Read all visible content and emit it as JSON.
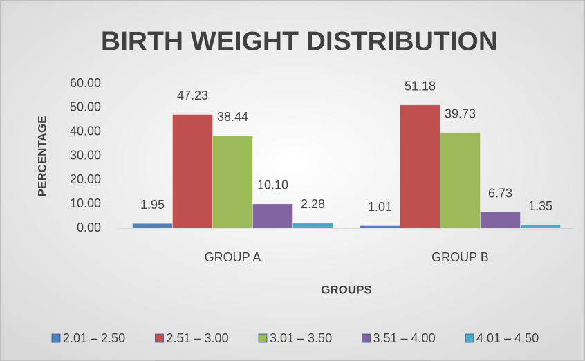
{
  "chart_data": {
    "type": "bar",
    "title": "BIRTH WEIGHT DISTRIBUTION",
    "x_label": "GROUPS",
    "y_label": "PERCENTAGE",
    "categories": [
      "GROUP A",
      "GROUP B"
    ],
    "series": [
      {
        "name": "2.01 – 2.50",
        "color": "#4f81bd",
        "values": [
          1.95,
          1.01
        ],
        "value_labels": [
          "1.95",
          "1.01"
        ]
      },
      {
        "name": "2.51 – 3.00",
        "color": "#c0504d",
        "values": [
          47.23,
          51.18
        ],
        "value_labels": [
          "47.23",
          "51.18"
        ]
      },
      {
        "name": "3.01 – 3.50",
        "color": "#9bbb59",
        "values": [
          38.44,
          39.73
        ],
        "value_labels": [
          "38.44",
          "39.73"
        ]
      },
      {
        "name": "3.51 – 4.00",
        "color": "#8064a2",
        "values": [
          10.1,
          6.73
        ],
        "value_labels": [
          "10.10",
          "6.73"
        ]
      },
      {
        "name": "4.01 – 4.50",
        "color": "#4bacc6",
        "values": [
          2.28,
          1.35
        ],
        "value_labels": [
          "2.28",
          "1.35"
        ]
      }
    ],
    "ylim": [
      0,
      60
    ],
    "yticks": [
      {
        "value": 0,
        "label": "0.00"
      },
      {
        "value": 10,
        "label": "10.00"
      },
      {
        "value": 20,
        "label": "20.00"
      },
      {
        "value": 30,
        "label": "30.00"
      },
      {
        "value": 40,
        "label": "40.00"
      },
      {
        "value": 50,
        "label": "50.00"
      },
      {
        "value": 60,
        "label": "60.00"
      }
    ],
    "grid": false,
    "legend": "bottom"
  }
}
